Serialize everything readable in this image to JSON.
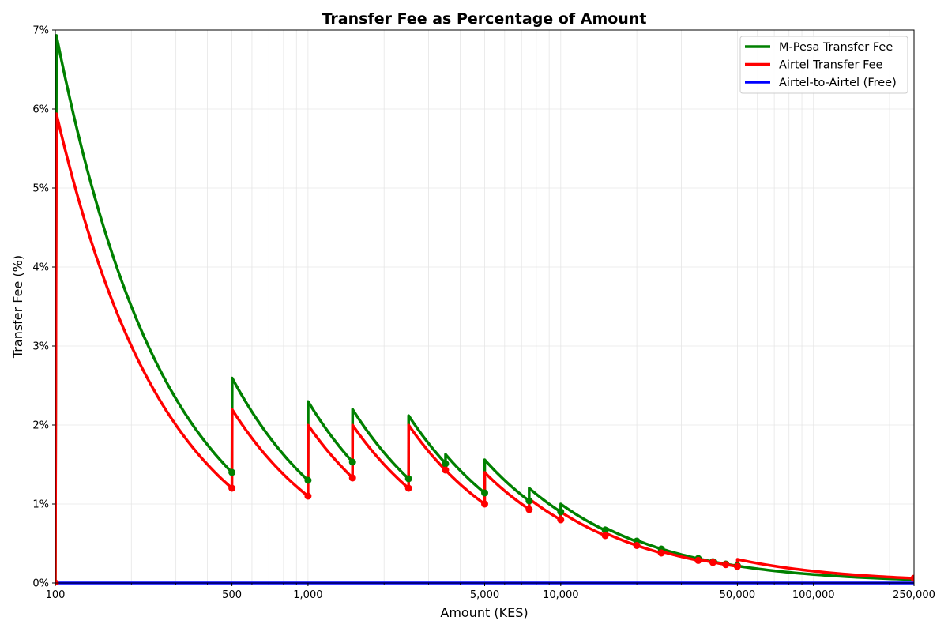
{
  "chart_data": {
    "type": "line",
    "title": "Transfer Fee as Percentage of Amount",
    "xlabel": "Amount (KES)",
    "ylabel": "Transfer Fee (%)",
    "x_scale": "log",
    "xlim": [
      100,
      250000
    ],
    "ylim": [
      0,
      7
    ],
    "grid": true,
    "legend_position": "top-right",
    "x_ticks": [
      {
        "value": 100,
        "label": "100"
      },
      {
        "value": 500,
        "label": "500"
      },
      {
        "value": 1000,
        "label": "1,000"
      },
      {
        "value": 5000,
        "label": "5,000"
      },
      {
        "value": 10000,
        "label": "10,000"
      },
      {
        "value": 50000,
        "label": "50,000"
      },
      {
        "value": 100000,
        "label": "100,000"
      },
      {
        "value": 250000,
        "label": "250,000"
      }
    ],
    "y_ticks": [
      {
        "value": 0,
        "label": "0%"
      },
      {
        "value": 1,
        "label": "1%"
      },
      {
        "value": 2,
        "label": "2%"
      },
      {
        "value": 3,
        "label": "3%"
      },
      {
        "value": 4,
        "label": "4%"
      },
      {
        "value": 5,
        "label": "5%"
      },
      {
        "value": 6,
        "label": "6%"
      },
      {
        "value": 7,
        "label": "7%"
      }
    ],
    "series": [
      {
        "name": "M-Pesa Transfer Fee",
        "color": "#008000",
        "fee_tiers": [
          {
            "from": 101,
            "to": 500,
            "fee_kes": 7
          },
          {
            "from": 501,
            "to": 1000,
            "fee_kes": 13
          },
          {
            "from": 1001,
            "to": 1500,
            "fee_kes": 23
          },
          {
            "from": 1501,
            "to": 2500,
            "fee_kes": 33
          },
          {
            "from": 2501,
            "to": 3500,
            "fee_kes": 53
          },
          {
            "from": 3501,
            "to": 5000,
            "fee_kes": 57
          },
          {
            "from": 5001,
            "to": 7500,
            "fee_kes": 78
          },
          {
            "from": 7501,
            "to": 10000,
            "fee_kes": 90
          },
          {
            "from": 10001,
            "to": 15000,
            "fee_kes": 100
          },
          {
            "from": 15001,
            "to": 20000,
            "fee_kes": 105
          },
          {
            "from": 20001,
            "to": 35000,
            "fee_kes": 108
          },
          {
            "from": 35001,
            "to": 50000,
            "fee_kes": 108
          },
          {
            "from": 50001,
            "to": 250000,
            "fee_kes": 108
          }
        ]
      },
      {
        "name": "Airtel Transfer Fee",
        "color": "#ff0000",
        "fee_tiers": [
          {
            "from": 101,
            "to": 500,
            "fee_kes": 6
          },
          {
            "from": 501,
            "to": 1000,
            "fee_kes": 11
          },
          {
            "from": 1001,
            "to": 1500,
            "fee_kes": 20
          },
          {
            "from": 1501,
            "to": 2500,
            "fee_kes": 30
          },
          {
            "from": 2501,
            "to": 3500,
            "fee_kes": 50
          },
          {
            "from": 3501,
            "to": 5000,
            "fee_kes": 50
          },
          {
            "from": 5001,
            "to": 7500,
            "fee_kes": 70
          },
          {
            "from": 7501,
            "to": 10000,
            "fee_kes": 80
          },
          {
            "from": 10001,
            "to": 15000,
            "fee_kes": 90
          },
          {
            "from": 15001,
            "to": 20000,
            "fee_kes": 95
          },
          {
            "from": 20001,
            "to": 25000,
            "fee_kes": 95
          },
          {
            "from": 25001,
            "to": 35000,
            "fee_kes": 100
          },
          {
            "from": 35001,
            "to": 40000,
            "fee_kes": 105
          },
          {
            "from": 40001,
            "to": 45000,
            "fee_kes": 105
          },
          {
            "from": 45001,
            "to": 50000,
            "fee_kes": 105
          },
          {
            "from": 50001,
            "to": 250000,
            "fee_kes": 150
          }
        ]
      },
      {
        "name": "Airtel-to-Airtel (Free)",
        "color": "#0000ff",
        "fee_tiers": [
          {
            "from": 100,
            "to": 250000,
            "fee_kes": 0
          }
        ]
      }
    ],
    "markers": [
      {
        "series": "M-Pesa Transfer Fee",
        "color": "#008000",
        "points": [
          [
            500,
            1.4
          ],
          [
            1000,
            1.3
          ],
          [
            1500,
            1.53
          ],
          [
            2500,
            1.32
          ],
          [
            3500,
            1.51
          ],
          [
            5000,
            1.14
          ],
          [
            7500,
            1.04
          ],
          [
            10000,
            0.9
          ],
          [
            15000,
            0.67
          ],
          [
            20000,
            0.53
          ],
          [
            25000,
            0.43
          ],
          [
            35000,
            0.31
          ],
          [
            40000,
            0.27
          ],
          [
            45000,
            0.24
          ],
          [
            50000,
            0.22
          ]
        ]
      },
      {
        "series": "Airtel Transfer Fee",
        "color": "#ff0000",
        "points": [
          [
            100,
            0
          ],
          [
            500,
            1.2
          ],
          [
            1000,
            1.1
          ],
          [
            1500,
            1.33
          ],
          [
            2500,
            1.2
          ],
          [
            3500,
            1.43
          ],
          [
            5000,
            1.0
          ],
          [
            7500,
            0.93
          ],
          [
            10000,
            0.8
          ],
          [
            15000,
            0.6
          ],
          [
            20000,
            0.475
          ],
          [
            25000,
            0.38
          ],
          [
            35000,
            0.286
          ],
          [
            40000,
            0.26
          ],
          [
            45000,
            0.233
          ],
          [
            50000,
            0.21
          ],
          [
            250000,
            0.06
          ]
        ]
      }
    ]
  }
}
